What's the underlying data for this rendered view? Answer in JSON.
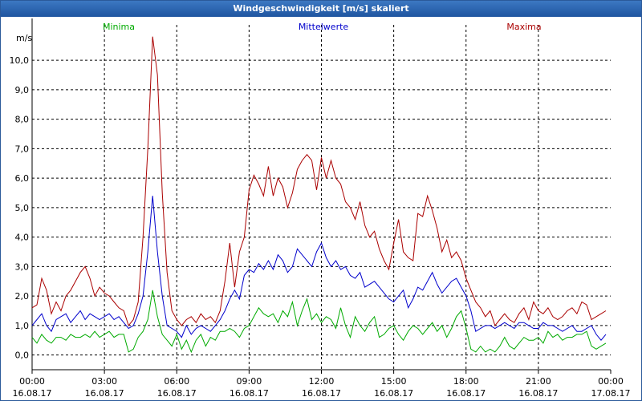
{
  "window": {
    "title": "Windgeschwindigkeit [m/s] skaliert"
  },
  "chart_data": {
    "type": "line",
    "title": "Windgeschwindigkeit [m/s] skaliert",
    "ylabel": "m/s",
    "ylim": [
      -0.5,
      11.2
    ],
    "xlim": [
      0,
      24
    ],
    "grid": true,
    "legend_position": "top",
    "yticks": [
      {
        "value": 0.0,
        "label": "0,0"
      },
      {
        "value": 1.0,
        "label": "1,0"
      },
      {
        "value": 2.0,
        "label": "2,0"
      },
      {
        "value": 3.0,
        "label": "3,0"
      },
      {
        "value": 4.0,
        "label": "4,0"
      },
      {
        "value": 5.0,
        "label": "5,0"
      },
      {
        "value": 6.0,
        "label": "6,0"
      },
      {
        "value": 7.0,
        "label": "7,0"
      },
      {
        "value": 8.0,
        "label": "8,0"
      },
      {
        "value": 9.0,
        "label": "9,0"
      },
      {
        "value": 10.0,
        "label": "10,0"
      }
    ],
    "xticks": [
      {
        "value": 0,
        "time": "00:00",
        "date": "16.08.17"
      },
      {
        "value": 3,
        "time": "03:00",
        "date": "16.08.17"
      },
      {
        "value": 6,
        "time": "06:00",
        "date": "16.08.17"
      },
      {
        "value": 9,
        "time": "09:00",
        "date": "16.08.17"
      },
      {
        "value": 12,
        "time": "12:00",
        "date": "16.08.17"
      },
      {
        "value": 15,
        "time": "15:00",
        "date": "16.08.17"
      },
      {
        "value": 18,
        "time": "18:00",
        "date": "16.08.17"
      },
      {
        "value": 21,
        "time": "21:00",
        "date": "16.08.17"
      },
      {
        "value": 24,
        "time": "00:00",
        "date": "17.08.17"
      }
    ],
    "x": [
      0,
      0.2,
      0.4,
      0.6,
      0.8,
      1.0,
      1.2,
      1.4,
      1.6,
      1.8,
      2.0,
      2.2,
      2.4,
      2.6,
      2.8,
      3.0,
      3.2,
      3.4,
      3.6,
      3.8,
      4.0,
      4.2,
      4.4,
      4.6,
      4.8,
      5.0,
      5.2,
      5.4,
      5.6,
      5.8,
      6.0,
      6.2,
      6.4,
      6.6,
      6.8,
      7.0,
      7.2,
      7.4,
      7.6,
      7.8,
      8.0,
      8.2,
      8.4,
      8.6,
      8.8,
      9.0,
      9.2,
      9.4,
      9.6,
      9.8,
      10.0,
      10.2,
      10.4,
      10.6,
      10.8,
      11.0,
      11.2,
      11.4,
      11.6,
      11.8,
      12.0,
      12.2,
      12.4,
      12.6,
      12.8,
      13.0,
      13.2,
      13.4,
      13.6,
      13.8,
      14.0,
      14.2,
      14.4,
      14.6,
      14.8,
      15.0,
      15.2,
      15.4,
      15.6,
      15.8,
      16.0,
      16.2,
      16.4,
      16.6,
      16.8,
      17.0,
      17.2,
      17.4,
      17.6,
      17.8,
      18.0,
      18.2,
      18.4,
      18.6,
      18.8,
      19.0,
      19.2,
      19.4,
      19.6,
      19.8,
      20.0,
      20.2,
      20.4,
      20.6,
      20.8,
      21.0,
      21.2,
      21.4,
      21.6,
      21.8,
      22.0,
      22.2,
      22.4,
      22.6,
      22.8,
      23.0,
      23.2,
      23.4,
      23.6,
      23.8
    ],
    "series": [
      {
        "name": "Minima",
        "color": "#00aa00",
        "values": [
          0.6,
          0.4,
          0.7,
          0.5,
          0.4,
          0.6,
          0.6,
          0.5,
          0.7,
          0.6,
          0.6,
          0.7,
          0.6,
          0.8,
          0.6,
          0.7,
          0.8,
          0.6,
          0.7,
          0.7,
          0.1,
          0.2,
          0.6,
          0.8,
          1.2,
          2.2,
          1.3,
          0.7,
          0.5,
          0.3,
          0.7,
          0.2,
          0.5,
          0.1,
          0.5,
          0.7,
          0.3,
          0.6,
          0.5,
          0.8,
          0.8,
          0.9,
          0.8,
          0.6,
          0.9,
          1.0,
          1.3,
          1.6,
          1.4,
          1.3,
          1.4,
          1.1,
          1.5,
          1.3,
          1.8,
          1.0,
          1.5,
          1.9,
          1.2,
          1.4,
          1.1,
          1.3,
          1.2,
          0.9,
          1.6,
          1.0,
          0.6,
          1.3,
          1.0,
          0.8,
          1.1,
          1.3,
          0.6,
          0.7,
          0.9,
          1.0,
          0.7,
          0.5,
          0.8,
          1.0,
          0.9,
          0.7,
          0.9,
          1.1,
          0.8,
          1.0,
          0.6,
          0.9,
          1.3,
          1.5,
          0.9,
          0.2,
          0.1,
          0.3,
          0.1,
          0.2,
          0.1,
          0.3,
          0.6,
          0.3,
          0.2,
          0.4,
          0.6,
          0.5,
          0.5,
          0.6,
          0.4,
          0.8,
          0.6,
          0.7,
          0.5,
          0.6,
          0.6,
          0.7,
          0.7,
          0.8,
          0.3,
          0.2,
          0.3,
          0.4
        ]
      },
      {
        "name": "Mittelwerte",
        "color": "#0000cc",
        "values": [
          1.0,
          1.2,
          1.4,
          1.0,
          0.8,
          1.2,
          1.3,
          1.4,
          1.1,
          1.3,
          1.5,
          1.2,
          1.4,
          1.3,
          1.2,
          1.3,
          1.4,
          1.2,
          1.3,
          1.1,
          0.9,
          1.0,
          1.4,
          2.0,
          3.5,
          5.4,
          3.5,
          2.0,
          1.0,
          0.9,
          0.8,
          0.6,
          1.0,
          0.7,
          0.9,
          1.0,
          0.9,
          0.8,
          1.0,
          1.2,
          1.5,
          1.9,
          2.2,
          1.9,
          2.7,
          2.9,
          2.8,
          3.1,
          2.9,
          3.2,
          2.9,
          3.4,
          3.2,
          2.8,
          3.0,
          3.6,
          3.4,
          3.2,
          3.0,
          3.5,
          3.8,
          3.3,
          3.0,
          3.2,
          2.9,
          3.0,
          2.7,
          2.6,
          2.8,
          2.3,
          2.4,
          2.5,
          2.3,
          2.1,
          1.9,
          1.8,
          2.0,
          2.2,
          1.6,
          1.9,
          2.3,
          2.2,
          2.5,
          2.8,
          2.4,
          2.1,
          2.3,
          2.5,
          2.6,
          2.3,
          2.0,
          1.5,
          0.8,
          0.9,
          1.0,
          1.0,
          0.9,
          1.0,
          1.1,
          1.0,
          0.9,
          1.1,
          1.1,
          1.0,
          0.9,
          0.9,
          1.1,
          1.0,
          1.0,
          0.9,
          0.8,
          0.9,
          1.0,
          0.8,
          0.8,
          0.9,
          1.0,
          0.7,
          0.5,
          0.7
        ]
      },
      {
        "name": "Maxima",
        "color": "#aa0000",
        "values": [
          1.6,
          1.7,
          2.6,
          2.2,
          1.4,
          1.8,
          1.5,
          2.0,
          2.2,
          2.5,
          2.8,
          3.0,
          2.6,
          2.0,
          2.3,
          2.1,
          2.0,
          1.8,
          1.6,
          1.5,
          1.0,
          1.2,
          1.8,
          4.0,
          7.0,
          10.8,
          9.5,
          5.5,
          2.8,
          1.5,
          1.2,
          1.0,
          1.2,
          1.3,
          1.1,
          1.4,
          1.2,
          1.3,
          1.1,
          1.5,
          2.5,
          3.8,
          2.3,
          3.5,
          4.0,
          5.6,
          6.1,
          5.8,
          5.4,
          6.4,
          5.4,
          6.0,
          5.7,
          5.0,
          5.5,
          6.3,
          6.6,
          6.8,
          6.6,
          5.6,
          6.7,
          6.0,
          6.6,
          6.0,
          5.8,
          5.2,
          5.0,
          4.6,
          5.2,
          4.4,
          4.0,
          4.2,
          3.6,
          3.2,
          2.9,
          3.8,
          4.6,
          3.5,
          3.3,
          3.2,
          4.8,
          4.7,
          5.4,
          4.9,
          4.3,
          3.5,
          3.9,
          3.3,
          3.5,
          3.2,
          2.6,
          2.2,
          1.8,
          1.6,
          1.3,
          1.5,
          1.0,
          1.2,
          1.4,
          1.2,
          1.1,
          1.4,
          1.6,
          1.2,
          1.8,
          1.5,
          1.4,
          1.6,
          1.3,
          1.2,
          1.3,
          1.5,
          1.6,
          1.4,
          1.8,
          1.7,
          1.2,
          1.3,
          1.4,
          1.5
        ]
      }
    ]
  }
}
